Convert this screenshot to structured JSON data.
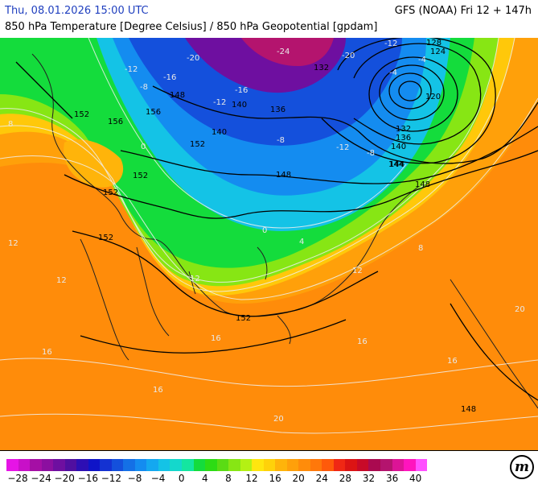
{
  "header": {
    "datetime": "Thu, 08.01.2026 15:00 UTC",
    "model_run": "GFS (NOAA) Fri 12 + 147h",
    "title": "850 hPa Temperature [Degree Celsius] / 850 hPa Geopotential [gpdam]"
  },
  "legend": {
    "colors": [
      "#e614e6",
      "#c810c8",
      "#a50fa5",
      "#8c0fa0",
      "#6e0fa0",
      "#500fa0",
      "#2d0fb4",
      "#0f14c8",
      "#1432d2",
      "#1450dc",
      "#1470e6",
      "#148cf0",
      "#14a8f0",
      "#14c3e6",
      "#14d8cc",
      "#14e6a0",
      "#14dc3c",
      "#2ddc14",
      "#5adc14",
      "#87e614",
      "#b4f014",
      "#ffe60f",
      "#ffd20a",
      "#ffb40a",
      "#ffa00a",
      "#ff8c0a",
      "#ff780a",
      "#ff5a0a",
      "#f02814",
      "#dc1414",
      "#c80a28",
      "#aa0a50",
      "#b4146e",
      "#dc1496",
      "#ff14be",
      "#ff50ff"
    ],
    "ticks": [
      "−28",
      "−24",
      "−20",
      "−16",
      "−12",
      "−8",
      "−4",
      "0",
      "4",
      "8",
      "12",
      "16",
      "20",
      "24",
      "28",
      "32",
      "36",
      "40"
    ]
  },
  "map": {
    "isohypse_labels": [
      {
        "text": "120"
      },
      {
        "text": "124"
      },
      {
        "text": "128"
      },
      {
        "text": "132"
      },
      {
        "text": "136"
      },
      {
        "text": "140"
      },
      {
        "text": "144"
      },
      {
        "text": "148"
      },
      {
        "text": "148"
      },
      {
        "text": "148"
      },
      {
        "text": "152"
      },
      {
        "text": "152"
      },
      {
        "text": "152"
      },
      {
        "text": "152"
      },
      {
        "text": "152"
      },
      {
        "text": "152"
      },
      {
        "text": "156"
      },
      {
        "text": "156"
      },
      {
        "text": "140"
      },
      {
        "text": "148"
      },
      {
        "text": "132"
      },
      {
        "text": "136"
      },
      {
        "text": "144"
      },
      {
        "text": "140"
      }
    ],
    "isotherm_labels": [
      {
        "text": "-24"
      },
      {
        "text": "-20"
      },
      {
        "text": "-20"
      },
      {
        "text": "-16"
      },
      {
        "text": "-12"
      },
      {
        "text": "-12"
      },
      {
        "text": "-8"
      },
      {
        "text": "-8"
      },
      {
        "text": "-4"
      },
      {
        "text": "-4"
      },
      {
        "text": "-12"
      },
      {
        "text": "-16"
      },
      {
        "text": "-12"
      },
      {
        "text": "-8"
      },
      {
        "text": "0"
      },
      {
        "text": "0"
      },
      {
        "text": "4"
      },
      {
        "text": "8"
      },
      {
        "text": "12"
      },
      {
        "text": "16"
      },
      {
        "text": "16"
      },
      {
        "text": "20"
      },
      {
        "text": "16"
      },
      {
        "text": "12"
      },
      {
        "text": "12"
      },
      {
        "text": "8"
      },
      {
        "text": "16"
      },
      {
        "text": "16"
      },
      {
        "text": "20"
      },
      {
        "text": "12"
      }
    ]
  }
}
